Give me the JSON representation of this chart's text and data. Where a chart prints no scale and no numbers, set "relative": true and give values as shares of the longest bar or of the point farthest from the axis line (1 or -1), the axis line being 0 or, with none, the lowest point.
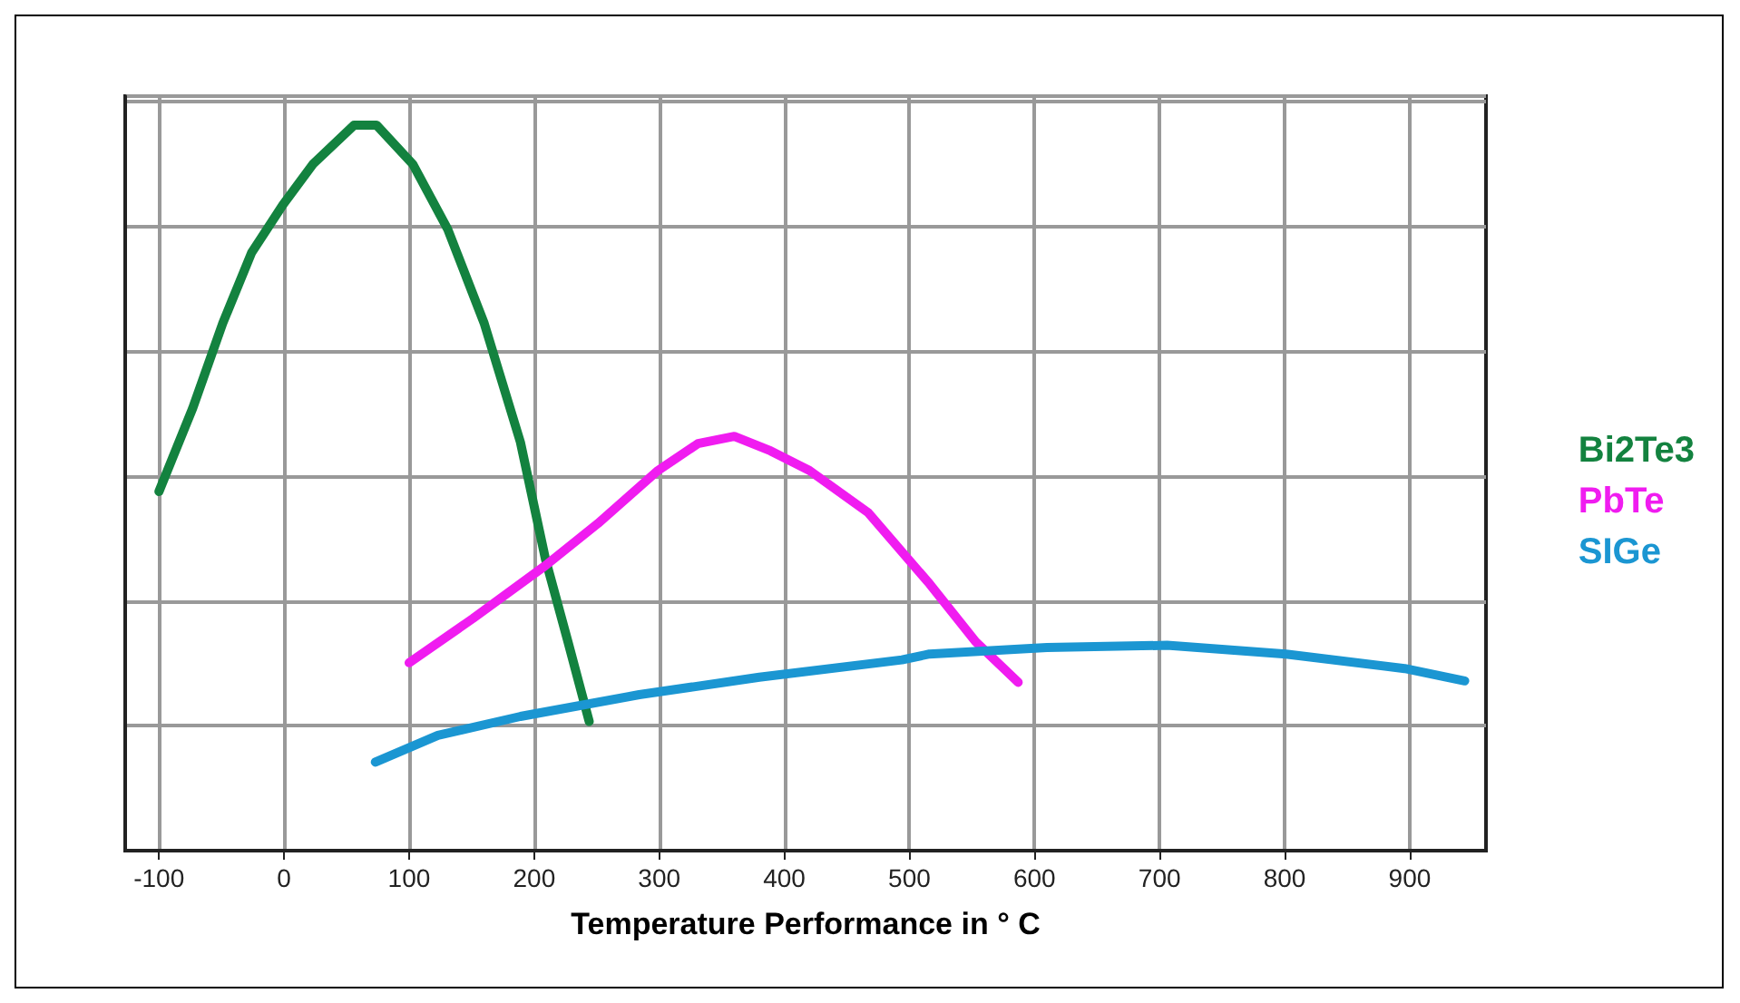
{
  "chart_data": {
    "type": "line",
    "xlabel": "Temperature Performance in ° C",
    "relative": true,
    "xlim": [
      -127,
      961
    ],
    "xticks": [
      -100,
      0,
      100,
      200,
      300,
      400,
      500,
      600,
      700,
      800,
      900
    ],
    "grid": true,
    "legend": "right",
    "marker": "none",
    "line_style": "solid",
    "series": [
      {
        "name": "Bi2Te3",
        "color": "#13823f",
        "x": [
          -100,
          -73,
          -49,
          -26,
          -1,
          23,
          56,
          74,
          103,
          131,
          160,
          189,
          209,
          227,
          244
        ],
        "values": [
          0.495,
          0.61,
          0.727,
          0.824,
          0.89,
          0.946,
          1,
          1,
          0.946,
          0.856,
          0.727,
          0.563,
          0.402,
          0.288,
          0.178
        ]
      },
      {
        "name": "PbTe",
        "color": "#f01cf0",
        "x": [
          100,
          151,
          209,
          251,
          299,
          331,
          360,
          389,
          420,
          467,
          516,
          553,
          587
        ],
        "values": [
          0.259,
          0.32,
          0.393,
          0.451,
          0.524,
          0.561,
          0.571,
          0.551,
          0.524,
          0.466,
          0.368,
          0.288,
          0.232
        ]
      },
      {
        "name": "SIGe",
        "color": "#1b96d2",
        "x": [
          73,
          123,
          189,
          284,
          380,
          494,
          516,
          610,
          706,
          801,
          896,
          944
        ],
        "values": [
          0.122,
          0.159,
          0.185,
          0.215,
          0.239,
          0.263,
          0.271,
          0.28,
          0.283,
          0.271,
          0.251,
          0.234
        ]
      }
    ]
  }
}
